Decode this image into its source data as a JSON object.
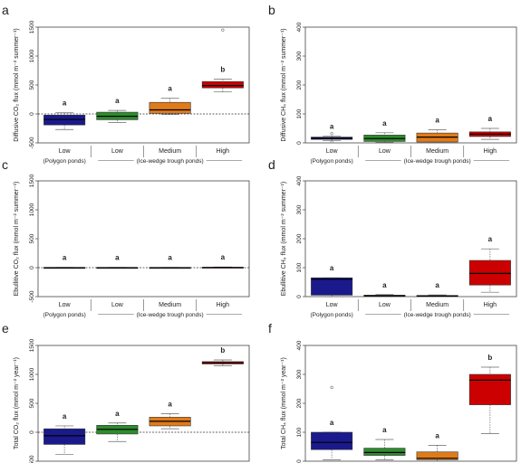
{
  "chart_data": [
    {
      "type": "boxplot",
      "panel_label": "a",
      "ylabel": "Diffusive CO₂ flux (mmol m⁻² summer⁻¹)",
      "ylim": [
        -500,
        1500
      ],
      "yticks": [
        -500,
        0,
        500,
        1000,
        1500
      ],
      "zero_line": true,
      "categories": [
        "Low",
        "Low",
        "Medium",
        "High"
      ],
      "groups": [
        {
          "label": "(Polygon ponds)",
          "from": 0,
          "to": 0
        },
        {
          "label": "(Ice-wedge trough ponds)",
          "from": 1,
          "to": 3
        }
      ],
      "boxes": [
        {
          "color": "#1a1a8c",
          "q1": -190,
          "median": -95,
          "q3": -20,
          "whisker_low": -270,
          "whisker_high": 20,
          "outliers": [],
          "label": "a"
        },
        {
          "color": "#2e8b2e",
          "q1": -100,
          "median": -40,
          "q3": 30,
          "whisker_low": -150,
          "whisker_high": 60,
          "outliers": [],
          "label": "a"
        },
        {
          "color": "#e07b1a",
          "q1": 10,
          "median": 70,
          "q3": 200,
          "whisker_low": -10,
          "whisker_high": 270,
          "outliers": [],
          "label": "a"
        },
        {
          "color": "#cc0000",
          "q1": 450,
          "median": 490,
          "q3": 560,
          "whisker_low": 380,
          "whisker_high": 600,
          "outliers": [
            1450
          ],
          "label": "b"
        }
      ]
    },
    {
      "type": "boxplot",
      "panel_label": "b",
      "ylabel": "Diffusive CH₄ flux (mmol m⁻² summer⁻¹)",
      "ylim": [
        0,
        400
      ],
      "yticks": [
        0,
        100,
        200,
        300,
        400
      ],
      "zero_line": false,
      "categories": [
        "Low",
        "Low",
        "Medium",
        "High"
      ],
      "groups": [
        {
          "label": "(Polygon ponds)",
          "from": 0,
          "to": 0
        },
        {
          "label": "(Ice-wedge trough ponds)",
          "from": 1,
          "to": 3
        }
      ],
      "boxes": [
        {
          "color": "#1a1a8c",
          "q1": 12,
          "median": 16,
          "q3": 20,
          "whisker_low": 8,
          "whisker_high": 24,
          "outliers": [
            32,
            3
          ],
          "label": "a"
        },
        {
          "color": "#2e8b2e",
          "q1": 5,
          "median": 15,
          "q3": 27,
          "whisker_low": 2,
          "whisker_high": 35,
          "outliers": [],
          "label": "a"
        },
        {
          "color": "#e07b1a",
          "q1": 3,
          "median": 20,
          "q3": 34,
          "whisker_low": 1,
          "whisker_high": 45,
          "outliers": [],
          "label": "a"
        },
        {
          "color": "#cc0000",
          "q1": 22,
          "median": 30,
          "q3": 38,
          "whisker_low": 12,
          "whisker_high": 50,
          "outliers": [
            85
          ],
          "label": "a"
        }
      ]
    },
    {
      "type": "boxplot",
      "panel_label": "c",
      "ylabel": "Ebullitive CO₂ flux (mmol m⁻² summer⁻¹)",
      "ylim": [
        -500,
        1500
      ],
      "yticks": [
        -500,
        0,
        500,
        1000,
        1500
      ],
      "zero_line": true,
      "categories": [
        "Low",
        "Low",
        "Medium",
        "High"
      ],
      "groups": [
        {
          "label": "(Polygon ponds)",
          "from": 0,
          "to": 0
        },
        {
          "label": "(Ice-wedge trough ponds)",
          "from": 1,
          "to": 3
        }
      ],
      "boxes": [
        {
          "color": "#1a1a8c",
          "q1": -2,
          "median": 0,
          "q3": 2,
          "whisker_low": -4,
          "whisker_high": 4,
          "outliers": [],
          "label": "a"
        },
        {
          "color": "#2e8b2e",
          "q1": -2,
          "median": 0,
          "q3": 2,
          "whisker_low": -4,
          "whisker_high": 4,
          "outliers": [],
          "label": "a"
        },
        {
          "color": "#e07b1a",
          "q1": -2,
          "median": 0,
          "q3": 2,
          "whisker_low": -4,
          "whisker_high": 4,
          "outliers": [],
          "label": "a"
        },
        {
          "color": "#cc0000",
          "q1": 0,
          "median": 3,
          "q3": 7,
          "whisker_low": -2,
          "whisker_high": 12,
          "outliers": [],
          "label": "a"
        }
      ]
    },
    {
      "type": "boxplot",
      "panel_label": "d",
      "ylabel": "Ebullitive CH₄ flux (mmol m⁻² summer⁻¹)",
      "ylim": [
        0,
        400
      ],
      "yticks": [
        0,
        100,
        200,
        300,
        400
      ],
      "zero_line": false,
      "categories": [
        "Low",
        "Low",
        "Medium",
        "High"
      ],
      "groups": [
        {
          "label": "(Polygon ponds)",
          "from": 0,
          "to": 0
        },
        {
          "label": "(Ice-wedge trough ponds)",
          "from": 1,
          "to": 3
        }
      ],
      "boxes": [
        {
          "color": "#1a1a8c",
          "q1": 5,
          "median": 60,
          "q3": 65,
          "whisker_low": 0,
          "whisker_high": 65,
          "outliers": [],
          "label": "a"
        },
        {
          "color": "#2e8b2e",
          "q1": 1,
          "median": 3,
          "q3": 5,
          "whisker_low": 0,
          "whisker_high": 7,
          "outliers": [],
          "label": "a"
        },
        {
          "color": "#e07b1a",
          "q1": 1,
          "median": 2,
          "q3": 4,
          "whisker_low": 0,
          "whisker_high": 6,
          "outliers": [],
          "label": "a"
        },
        {
          "color": "#cc0000",
          "q1": 40,
          "median": 80,
          "q3": 125,
          "whisker_low": 15,
          "whisker_high": 165,
          "outliers": [],
          "label": "a"
        }
      ]
    },
    {
      "type": "boxplot",
      "panel_label": "e",
      "ylabel": "Total CO₂ flux (mmol m⁻² year⁻¹)",
      "ylim": [
        -500,
        1500
      ],
      "yticks": [
        -500,
        0,
        500,
        1000,
        1500
      ],
      "zero_line": true,
      "categories": [
        "Low",
        "Low",
        "Medium",
        "High"
      ],
      "groups": [
        {
          "label": "(Polygon ponds)",
          "from": 0,
          "to": 0
        },
        {
          "label": "(Ice-wedge trough ponds)",
          "from": 1,
          "to": 3
        }
      ],
      "boxes": [
        {
          "color": "#1a1a8c",
          "q1": -210,
          "median": -60,
          "q3": 60,
          "whisker_low": -380,
          "whisker_high": 110,
          "outliers": [],
          "label": "a"
        },
        {
          "color": "#2e8b2e",
          "q1": -30,
          "median": 50,
          "q3": 120,
          "whisker_low": -160,
          "whisker_high": 160,
          "outliers": [],
          "label": "a"
        },
        {
          "color": "#e07b1a",
          "q1": 110,
          "median": 190,
          "q3": 260,
          "whisker_low": 60,
          "whisker_high": 320,
          "outliers": [],
          "label": "a"
        },
        {
          "color": "#cc0000",
          "q1": 1180,
          "median": 1200,
          "q3": 1220,
          "whisker_low": 1150,
          "whisker_high": 1250,
          "outliers": [],
          "label": "b"
        }
      ]
    },
    {
      "type": "boxplot",
      "panel_label": "f",
      "ylabel": "Total CH₄ flux (mmol m⁻² year⁻¹)",
      "ylim": [
        0,
        400
      ],
      "yticks": [
        0,
        100,
        200,
        300,
        400
      ],
      "zero_line": false,
      "categories": [
        "Low",
        "Low",
        "Medium",
        "High"
      ],
      "groups": [
        {
          "label": "(Polygon ponds)",
          "from": 0,
          "to": 0
        },
        {
          "label": "(Ice-wedge trough ponds)",
          "from": 1,
          "to": 3
        }
      ],
      "boxes": [
        {
          "color": "#1a1a8c",
          "q1": 40,
          "median": 65,
          "q3": 100,
          "whisker_low": 5,
          "whisker_high": 100,
          "outliers": [
            255
          ],
          "label": "a"
        },
        {
          "color": "#2e8b2e",
          "q1": 20,
          "median": 30,
          "q3": 45,
          "whisker_low": 5,
          "whisker_high": 75,
          "outliers": [],
          "label": "a"
        },
        {
          "color": "#e07b1a",
          "q1": 5,
          "median": 10,
          "q3": 32,
          "whisker_low": 0,
          "whisker_high": 55,
          "outliers": [],
          "label": "a"
        },
        {
          "color": "#cc0000",
          "q1": 195,
          "median": 280,
          "q3": 300,
          "whisker_low": 95,
          "whisker_high": 325,
          "outliers": [],
          "label": "b"
        }
      ]
    }
  ]
}
